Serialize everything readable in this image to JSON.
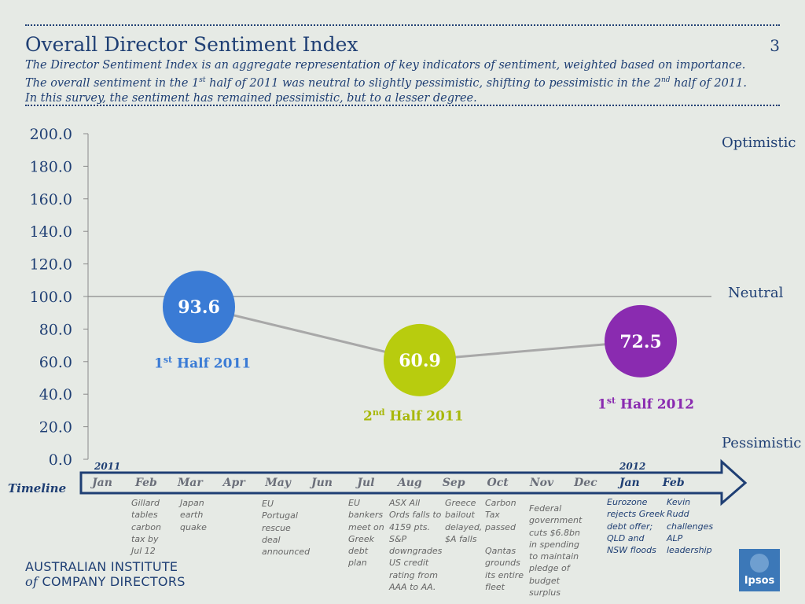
{
  "header": {
    "title": "Overall Director Sentiment Index",
    "page_number": "3",
    "subtitle_parts": {
      "p1": "The Director Sentiment Index is an aggregate representation of key indicators of sentiment, weighted based on importance. The overall sentiment in the 1",
      "sup1": "st",
      "p2": " half of 2011 was neutral to slightly pessimistic, shifting to pessimistic in the 2",
      "sup2": "nd",
      "p3": " half of 2011. In this survey, the sentiment has remained pessimistic, but to a lesser degree."
    }
  },
  "chart_data": {
    "type": "line",
    "title": "Overall Director Sentiment Index",
    "ylim": [
      0,
      200
    ],
    "yticks": [
      "0.0",
      "20.0",
      "40.0",
      "60.0",
      "80.0",
      "100.0",
      "120.0",
      "140.0",
      "160.0",
      "180.0",
      "200.0"
    ],
    "reference_line": 100,
    "points": [
      {
        "label_main": "1",
        "label_sup": "st",
        "label_rest": " Half 2011",
        "value": 93.6,
        "value_label": "93.6",
        "color": "#3a7bd5"
      },
      {
        "label_main": "2",
        "label_sup": "nd",
        "label_rest": " Half 2011",
        "value": 60.9,
        "value_label": "60.9",
        "color": "#b8cc0e"
      },
      {
        "label_main": "1",
        "label_sup": "st",
        "label_rest": " Half 2012",
        "value": 72.5,
        "value_label": "72.5",
        "color": "#8a2bb0"
      }
    ],
    "line_color": "#a8a8a8",
    "sentiment_labels": {
      "optimistic": "Optimistic",
      "neutral": "Neutral",
      "pessimistic": "Pessimistic"
    }
  },
  "timeline": {
    "label": "Timeline",
    "year_2011": "2011",
    "year_2012": "2012",
    "months": [
      "Jan",
      "Feb",
      "Mar",
      "Apr",
      "May",
      "Jun",
      "Jul",
      "Aug",
      "Sep",
      "Oct",
      "Nov",
      "Dec",
      "Jan",
      "Feb"
    ],
    "events": {
      "feb": "Gillard\ntables\ncarbon\ntax by\nJul 12",
      "mar": "Japan\nearth\nquake",
      "may": "EU\nPortugal\nrescue\ndeal\nannounced",
      "jul": "EU\nbankers\nmeet on\nGreek\ndebt\nplan",
      "aug": "ASX  All\nOrds falls to\n4159 pts.\nS&P\ndowngrades\nUS credit\nrating  from\nAAA to AA.",
      "sep": "Greece\nbailout\ndelayed,\n$A falls",
      "oct": "Carbon\nTax\npassed\n\nQantas\ngrounds\nits entire\nfleet",
      "nov": "Federal\ngovernment\ncuts $6.8bn\nin spending\nto maintain\npledge of\nbudget\nsurplus",
      "jan2012": "Eurozone\nrejects Greek\ndebt offer;\nQLD and\nNSW floods",
      "feb2012": "Kevin\nRudd\nchallenges\nALP\nleadership"
    }
  },
  "logos": {
    "aicd_line1": "AUSTRALIAN INSTITUTE",
    "aicd_of": "of",
    "aicd_line2": " COMPANY DIRECTORS",
    "ipsos": "Ipsos"
  },
  "colors": {
    "navy": "#1f3f74",
    "background": "#e6eae5"
  }
}
